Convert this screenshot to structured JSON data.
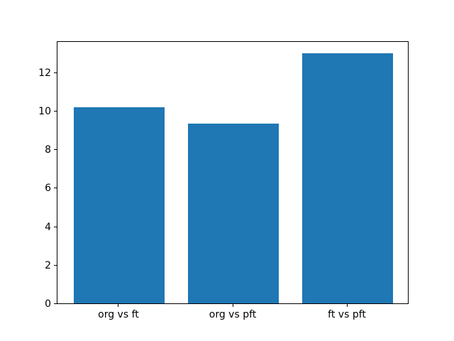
{
  "figure": {
    "background_color": "#ffffff",
    "spine_color": "#000000",
    "tick_label_color": "#000000"
  },
  "chart_data": {
    "type": "bar",
    "categories": [
      "org vs ft",
      "org vs pft",
      "ft vs pft"
    ],
    "values": [
      10.2,
      9.35,
      13.0
    ],
    "title": "",
    "xlabel": "",
    "ylabel": "",
    "ylim": [
      0,
      13.65
    ],
    "xlim": [
      -0.54,
      2.54
    ],
    "yticks": [
      0,
      2,
      4,
      6,
      8,
      10,
      12
    ],
    "ytick_labels": [
      "0",
      "2",
      "4",
      "6",
      "8",
      "10",
      "12"
    ],
    "bar_width": 0.8,
    "bar_color": "#1f77b4",
    "grid": false,
    "legend_position": "none"
  }
}
